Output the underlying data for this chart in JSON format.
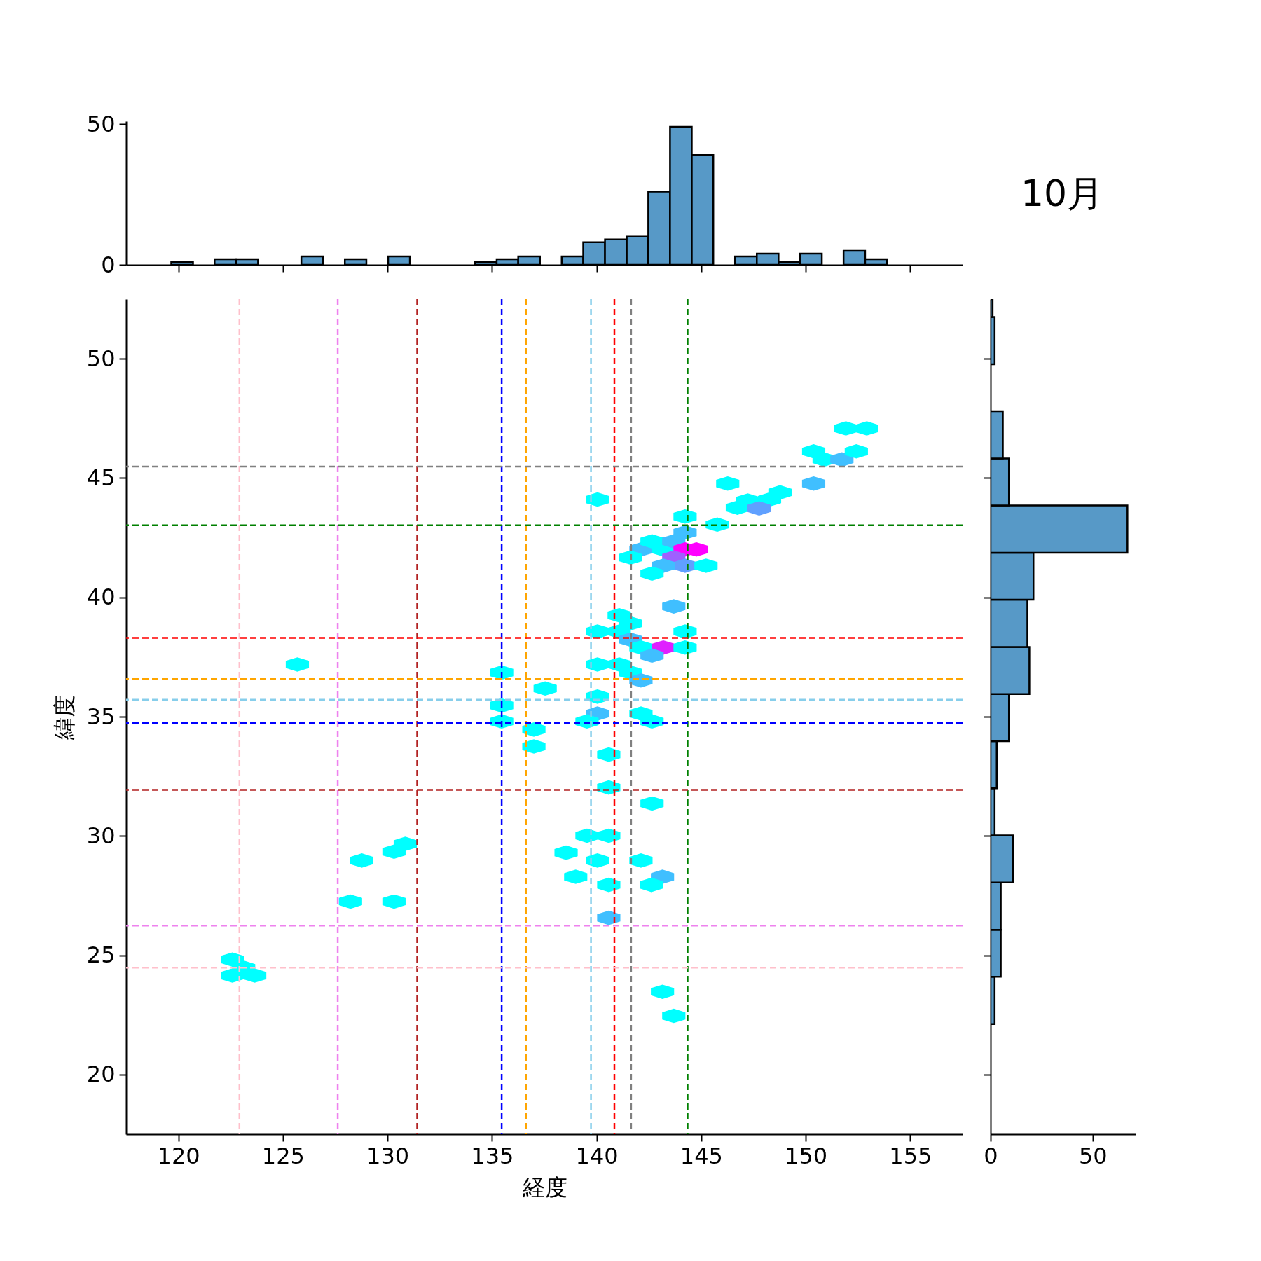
{
  "chart_data": [
    {
      "type": "histogram",
      "color": "#5799c7",
      "bins": [
        119.66,
        120.7,
        121.73,
        122.77,
        123.81,
        124.84,
        125.88,
        126.92,
        127.96,
        128.99,
        130.03,
        131.07,
        132.1,
        133.14,
        134.18,
        135.22,
        136.25,
        137.29,
        138.33,
        139.36,
        140.4,
        141.44,
        142.47,
        143.51,
        144.55,
        145.58,
        146.62,
        147.66,
        148.7,
        149.73,
        150.77,
        151.81,
        152.84,
        153.88
      ],
      "values": [
        1,
        0,
        2,
        2,
        0,
        0,
        3,
        0,
        2,
        0,
        3,
        0,
        0,
        0,
        1,
        2,
        3,
        0,
        3,
        8,
        9,
        10,
        26,
        49,
        39,
        0,
        3,
        4,
        1,
        4,
        0,
        5,
        2
      ],
      "xlim": [
        117.5,
        157.5
      ],
      "xticks": [
        120,
        125,
        130,
        135,
        140,
        145,
        150,
        155
      ],
      "ylim": [
        0,
        51
      ],
      "yticks": [
        0,
        50
      ],
      "tick_labels": "y"
    },
    {
      "type": "scatter",
      "xlabel": "経度",
      "ylabel": "緯度",
      "x": [
        151.92,
        152.92,
        150.38,
        150.88,
        151.73,
        152.42,
        146.27,
        150.38,
        148.77,
        148.27,
        147.23,
        146.73,
        147.77,
        145.77,
        144.23,
        144.23,
        140.04,
        142.12,
        141.62,
        142.65,
        143.19,
        143.69,
        144.23,
        144.77,
        143.69,
        144.23,
        143.19,
        142.65,
        145.23,
        143.69,
        141.08,
        141.62,
        140.04,
        141.08,
        141.62,
        144.23,
        142.12,
        143.19,
        144.23,
        142.65,
        140.04,
        141.08,
        141.62,
        142.12,
        125.69,
        135.46,
        137.54,
        140.04,
        135.46,
        140.04,
        142.12,
        142.65,
        139.54,
        135.46,
        137.0,
        137.0,
        140.58,
        140.58,
        142.65,
        139.54,
        140.58,
        138.54,
        140.04,
        142.12,
        139.0,
        143.15,
        140.58,
        142.62,
        140.58,
        130.85,
        130.31,
        128.77,
        128.23,
        130.31,
        122.58,
        123.12,
        122.58,
        123.65,
        143.15,
        143.69
      ],
      "values": [
        47.08,
        47.08,
        46.12,
        45.78,
        45.78,
        46.12,
        44.77,
        44.77,
        44.4,
        44.1,
        44.06,
        43.76,
        43.73,
        43.05,
        43.39,
        42.72,
        44.1,
        42.01,
        41.67,
        42.35,
        42.01,
        42.35,
        42.01,
        42.01,
        41.67,
        41.33,
        41.33,
        41.0,
        41.33,
        39.62,
        39.25,
        38.91,
        38.57,
        38.57,
        38.23,
        38.57,
        37.9,
        37.9,
        37.9,
        37.56,
        37.19,
        37.19,
        36.85,
        36.52,
        37.19,
        36.85,
        36.18,
        35.84,
        35.47,
        35.13,
        35.13,
        34.8,
        34.8,
        34.8,
        34.46,
        33.75,
        33.41,
        32.03,
        31.36,
        30.01,
        30.01,
        29.3,
        28.97,
        28.97,
        28.29,
        28.29,
        27.95,
        27.95,
        26.57,
        29.67,
        29.34,
        28.97,
        27.25,
        27.25,
        24.82,
        24.48,
        24.15,
        24.15,
        23.47,
        22.46
      ],
      "colors": [
        "#00ffff",
        "#00ffff",
        "#00ffff",
        "#00ffff",
        "#40bfff",
        "#00ffff",
        "#00ffff",
        "#40bfff",
        "#00ffff",
        "#00ffff",
        "#00ffff",
        "#00ffff",
        "#60a0ff",
        "#00ffff",
        "#00ffff",
        "#40bfff",
        "#00ffff",
        "#40bfff",
        "#00ffff",
        "#00ffff",
        "#00ffff",
        "#40bfff",
        "#ff00ff",
        "#ff00ff",
        "#9f60ff",
        "#60a0ff",
        "#40bfff",
        "#00ffff",
        "#00ffff",
        "#40bfff",
        "#00ffff",
        "#00ffff",
        "#00ffff",
        "#00ffff",
        "#40bfff",
        "#00ffff",
        "#00ffff",
        "#df20ff",
        "#00ffff",
        "#40bfff",
        "#00ffff",
        "#00ffff",
        "#00ffff",
        "#40bfff",
        "#00ffff",
        "#00ffff",
        "#00ffff",
        "#00ffff",
        "#00ffff",
        "#40bfff",
        "#00ffff",
        "#00ffff",
        "#00ffff",
        "#00ffff",
        "#00ffff",
        "#00ffff",
        "#00ffff",
        "#00ffff",
        "#00ffff",
        "#00ffff",
        "#00ffff",
        "#00ffff",
        "#00ffff",
        "#00ffff",
        "#00ffff",
        "#40bfff",
        "#00ffff",
        "#00ffff",
        "#40bfff",
        "#00ffff",
        "#00ffff",
        "#00ffff",
        "#00ffff",
        "#00ffff",
        "#00ffff",
        "#00ffff",
        "#00ffff",
        "#00ffff",
        "#00ffff",
        "#00ffff"
      ],
      "xlim": [
        117.5,
        157.5
      ],
      "xticks": [
        120,
        125,
        130,
        135,
        140,
        145,
        150,
        155
      ],
      "ylim": [
        17.5,
        52.5
      ],
      "yticks": [
        20,
        25,
        30,
        35,
        40,
        45,
        50
      ],
      "ref_lines": [
        {
          "axis": "x",
          "value": 122.92,
          "color": "#ffc0cb",
          "line_style": "dashed"
        },
        {
          "axis": "x",
          "value": 127.62,
          "color": "#ee82ee",
          "line_style": "dashed"
        },
        {
          "axis": "x",
          "value": 131.42,
          "color": "#b22222",
          "line_style": "dashed"
        },
        {
          "axis": "x",
          "value": 135.46,
          "color": "#0000ff",
          "line_style": "dashed"
        },
        {
          "axis": "x",
          "value": 136.62,
          "color": "#ffa500",
          "line_style": "dashed"
        },
        {
          "axis": "x",
          "value": 139.73,
          "color": "#87ceeb",
          "line_style": "dashed"
        },
        {
          "axis": "x",
          "value": 140.85,
          "color": "#ff0000",
          "line_style": "dashed"
        },
        {
          "axis": "x",
          "value": 141.65,
          "color": "#808080",
          "line_style": "dashed"
        },
        {
          "axis": "x",
          "value": 144.35,
          "color": "#008000",
          "line_style": "dashed"
        },
        {
          "axis": "y",
          "value": 45.48,
          "color": "#808080",
          "line_style": "dashed"
        },
        {
          "axis": "y",
          "value": 43.02,
          "color": "#008000",
          "line_style": "dashed"
        },
        {
          "axis": "y",
          "value": 38.3,
          "color": "#ff0000",
          "line_style": "dashed"
        },
        {
          "axis": "y",
          "value": 36.58,
          "color": "#ffa500",
          "line_style": "dashed"
        },
        {
          "axis": "y",
          "value": 35.71,
          "color": "#87ceeb",
          "line_style": "dashed"
        },
        {
          "axis": "y",
          "value": 34.73,
          "color": "#0000ff",
          "line_style": "dashed"
        },
        {
          "axis": "y",
          "value": 31.93,
          "color": "#b22222",
          "line_style": "dashed"
        },
        {
          "axis": "y",
          "value": 26.24,
          "color": "#ee82ee",
          "line_style": "dashed"
        },
        {
          "axis": "y",
          "value": 24.48,
          "color": "#ffc0cb",
          "line_style": "dashed"
        }
      ]
    },
    {
      "type": "histogram",
      "title": "10月",
      "orientation": "horizontal",
      "color": "#5799c7",
      "bins": [
        22.12,
        24.1,
        26.07,
        28.05,
        30.02,
        32.0,
        33.97,
        35.95,
        37.92,
        39.9,
        41.87,
        43.85,
        45.82,
        47.8,
        49.77,
        51.75,
        52.5
      ],
      "values": [
        2,
        5,
        5,
        11,
        2,
        3,
        9,
        19,
        18,
        21,
        67,
        9,
        6,
        0,
        2,
        1
      ],
      "xlim": [
        0,
        71
      ],
      "xticks": [
        0,
        50
      ],
      "ylim": [
        17.5,
        52.5
      ],
      "yticks": [
        20,
        25,
        30,
        35,
        40,
        45,
        50
      ],
      "tick_labels": "x"
    }
  ]
}
